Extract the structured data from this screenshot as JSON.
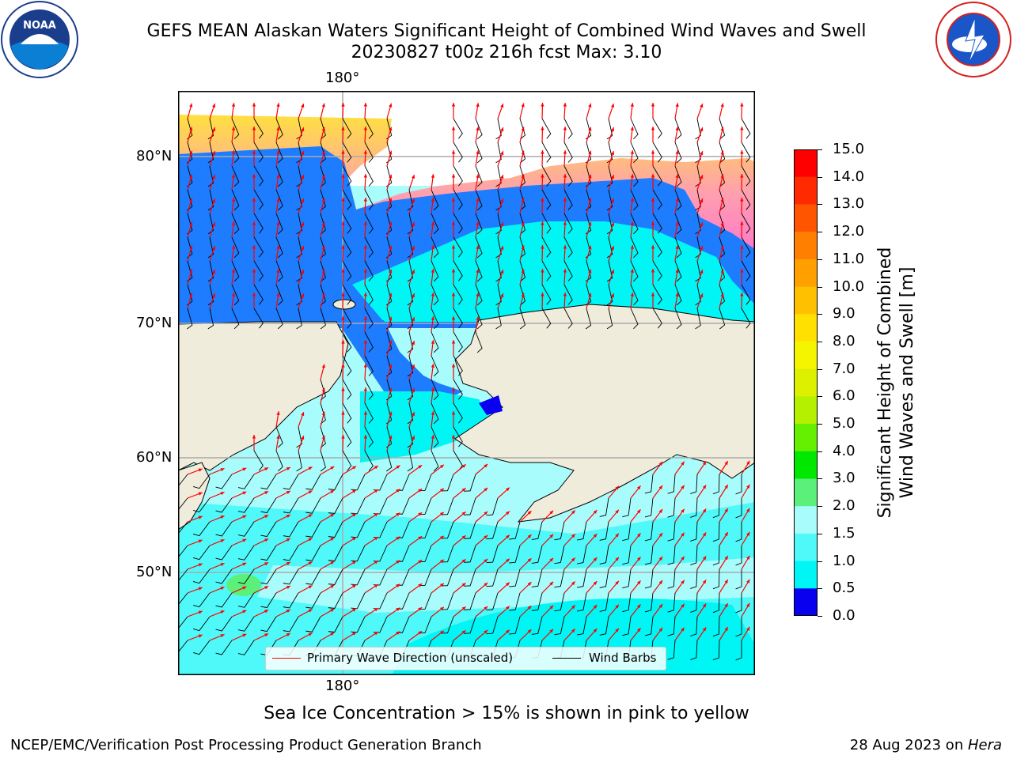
{
  "title": {
    "line1": "GEFS MEAN Alaskan Waters Significant Height of Combined Wind Waves and Swell",
    "line2": "20230827 t00z 216h fcst   Max: 3.10"
  },
  "logos": {
    "left": "NOAA",
    "right": "NATIONAL WEATHER SERVICE"
  },
  "map": {
    "lon_label_top": "180°",
    "lon_label_bottom": "180°",
    "lat_labels": [
      "80°N",
      "70°N",
      "60°N",
      "50°N"
    ],
    "colors": {
      "land": "#efecdc",
      "ocean_cyan_light": "#a9fcfc",
      "ocean_cyan": "#00f5f5",
      "ocean_blue": "#1e7cff",
      "ocean_deep_blue": "#0a00f0",
      "green_patch": "#5af07a",
      "ice_pink": "#ff6bd0",
      "ice_yellow": "#ffe040",
      "wave_arrow": "#ff0000",
      "wind_barb": "#000000"
    },
    "legend": {
      "wave_label": "Primary Wave Direction (unscaled)",
      "wind_label": "Wind Barbs"
    }
  },
  "colorbar": {
    "label": "Significant Height of Combined Wind Waves and Swell [m]",
    "ticks": [
      "15.0",
      "14.0",
      "13.0",
      "12.0",
      "11.0",
      "10.0",
      "9.0",
      "8.0",
      "7.0",
      "6.0",
      "5.0",
      "4.0",
      "3.0",
      "2.0",
      "1.5",
      "1.0",
      "0.5",
      "0.0"
    ],
    "colors": [
      "#ff0000",
      "#ff2a00",
      "#ff5500",
      "#ff7f00",
      "#ff9f00",
      "#ffc000",
      "#ffe000",
      "#f5f500",
      "#dcf000",
      "#b4f000",
      "#64f000",
      "#00e800",
      "#5af07a",
      "#a9fcfc",
      "#4ff9f9",
      "#00f5f5",
      "#1e7cff",
      "#0a00f0"
    ]
  },
  "caption": "Sea Ice Concentration > 15% is shown in pink to yellow",
  "footer": {
    "left": "NCEP/EMC/Verification Post Processing Product Generation Branch",
    "right_prefix": "28 Aug 2023 on ",
    "right_host": "Hera"
  }
}
